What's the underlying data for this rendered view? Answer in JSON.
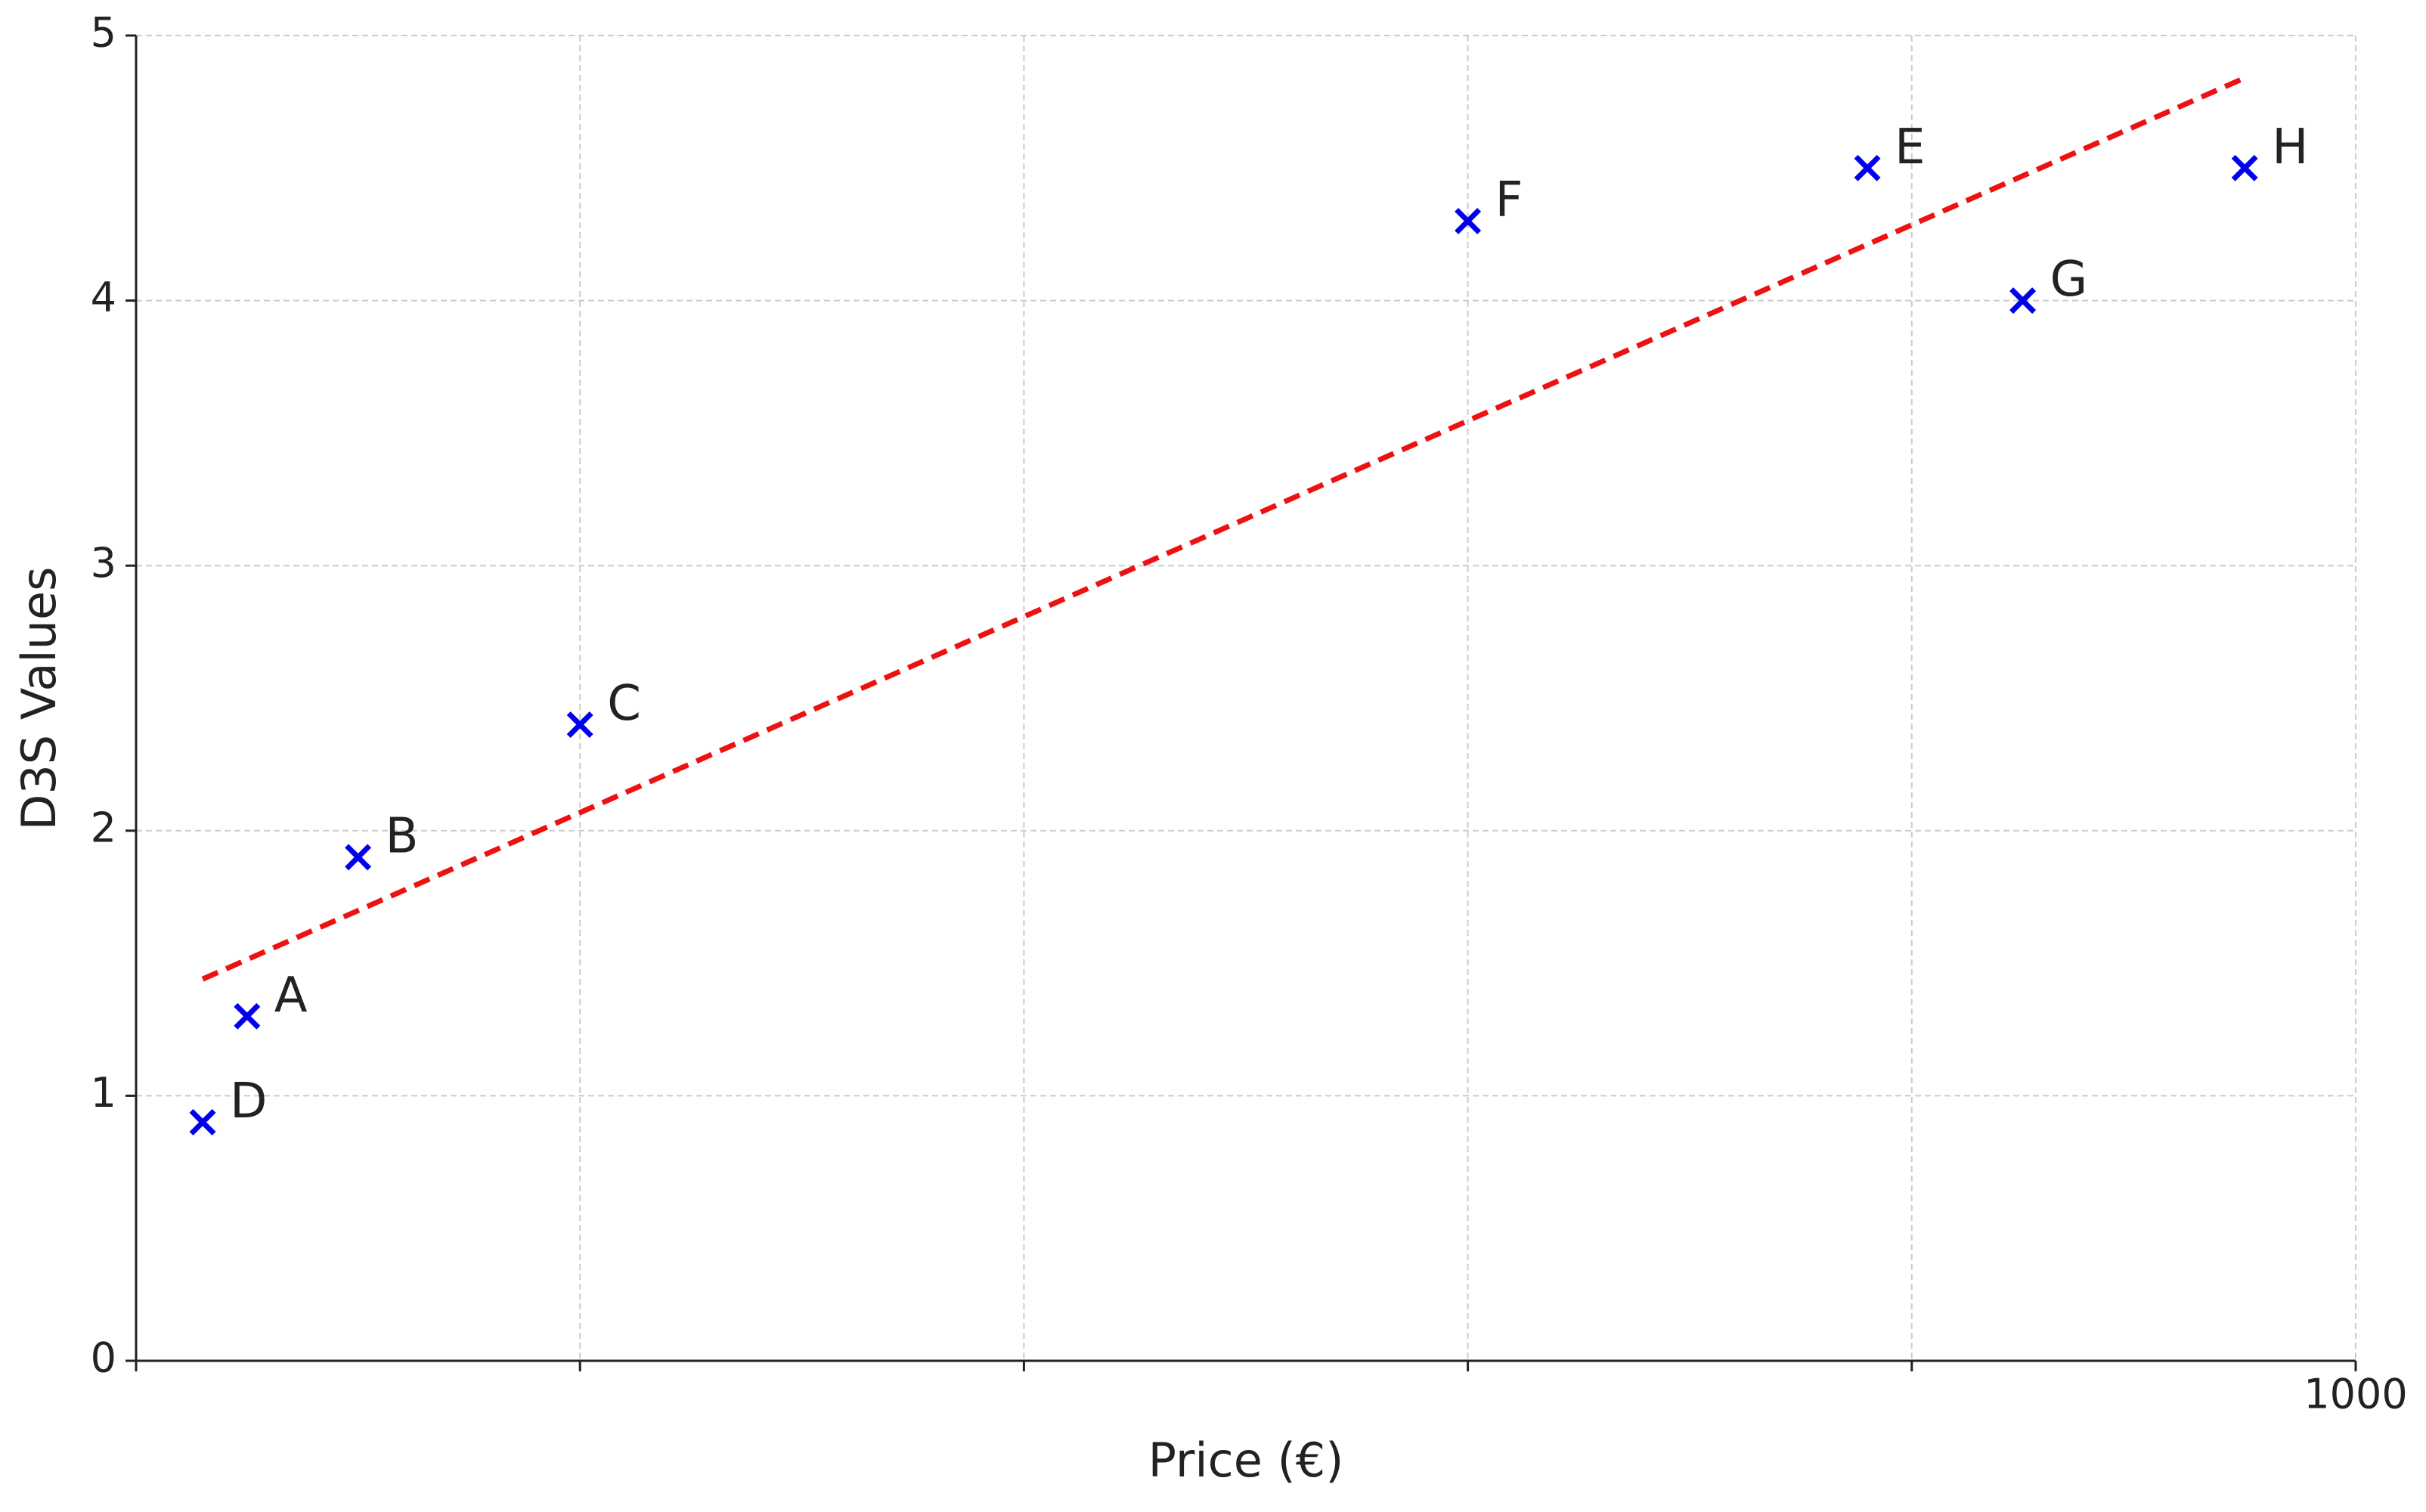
{
  "chart_data": {
    "type": "scatter",
    "x_label": "Price (€)",
    "y_label": "D3S Values",
    "labels": [
      "A",
      "B",
      "C",
      "D",
      "E",
      "F",
      "G",
      "H"
    ],
    "x": [
      50,
      100,
      200,
      30,
      780,
      600,
      850,
      950
    ],
    "values": [
      1.3,
      1.9,
      2.4,
      0.9,
      4.5,
      4.3,
      4.0,
      4.5
    ],
    "color": "#0000ee",
    "trend": {
      "x": [
        30,
        950
      ],
      "values": [
        1.44,
        4.84
      ],
      "color": "#ee1111"
    },
    "xlim": [
      0,
      1000
    ],
    "ylim": [
      0,
      5
    ],
    "xticks": [
      {
        "value": 0,
        "label": null
      },
      {
        "value": 200,
        "label": null
      },
      {
        "value": 400,
        "label": null
      },
      {
        "value": 600,
        "label": null
      },
      {
        "value": 800,
        "label": null
      },
      1000
    ],
    "yticks": [
      0,
      1,
      2,
      3,
      4,
      5
    ],
    "grid": true
  }
}
